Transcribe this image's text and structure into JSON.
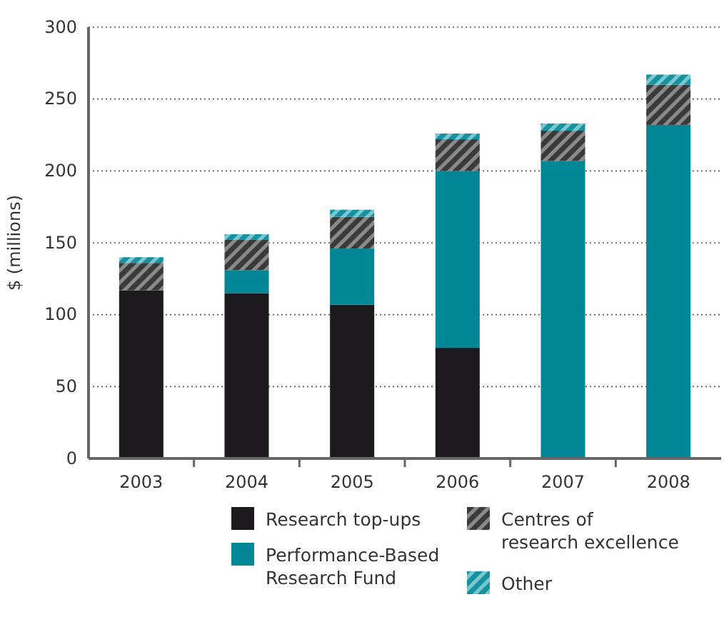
{
  "chart_data": {
    "type": "bar",
    "stacked": true,
    "ylabel": "$ (millions)",
    "categories": [
      "2003",
      "2004",
      "2005",
      "2006",
      "2007",
      "2008"
    ],
    "series": [
      {
        "name": "Research top-ups",
        "color": "#1c1a1d",
        "values": [
          117,
          115,
          107,
          77,
          0,
          0
        ]
      },
      {
        "name": "Performance-Based Research Fund",
        "color": "#008695",
        "values": [
          0,
          16,
          39,
          123,
          207,
          232
        ]
      },
      {
        "name": "Centres of research excellence",
        "color": "#3a3a3a",
        "values": [
          19,
          21,
          22,
          22,
          21,
          28
        ]
      },
      {
        "name": "Other",
        "color": "#1592a0",
        "values": [
          4,
          4,
          5,
          4,
          5,
          7
        ]
      }
    ],
    "ylim": [
      0,
      300
    ],
    "yticks": [
      0,
      50,
      100,
      150,
      200,
      250,
      300
    ],
    "grid": "y",
    "legend": "bottom"
  }
}
